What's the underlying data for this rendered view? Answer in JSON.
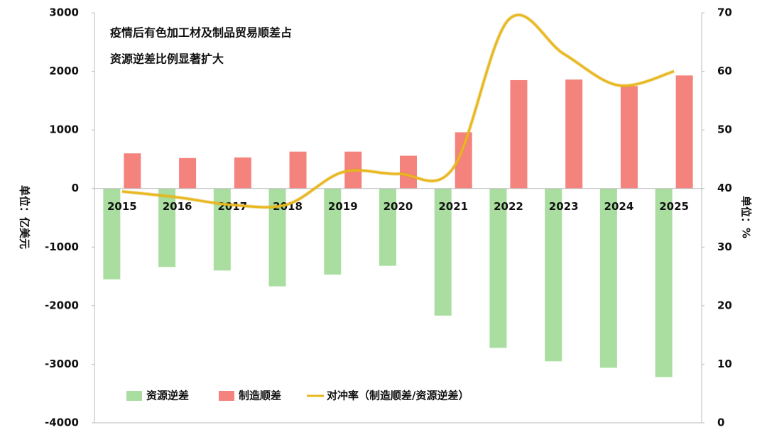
{
  "chart_data": {
    "type": "bar-line",
    "title_lines": [
      "疫情后有色加工材及制品贸易顺差占",
      "资源逆差比例显著扩大"
    ],
    "ylabel": "单位：亿美元",
    "y2label": "单位：%",
    "categories": [
      "2015",
      "2016",
      "2017",
      "2018",
      "2019",
      "2020",
      "2021",
      "2022",
      "2023",
      "2024",
      "2025"
    ],
    "series": [
      {
        "name": "资源逆差",
        "color": "#a9dea0",
        "type": "bar",
        "values": [
          -1550,
          -1340,
          -1400,
          -1670,
          -1470,
          -1320,
          -2170,
          -2720,
          -2950,
          -3060,
          -3220
        ]
      },
      {
        "name": "制造顺差",
        "color": "#f4837d",
        "type": "bar",
        "values": [
          600,
          520,
          530,
          630,
          630,
          560,
          960,
          1850,
          1860,
          1750,
          1930
        ]
      },
      {
        "name": "对冲率（制造顺差/资源逆差）",
        "color": "#e8b81e",
        "type": "line",
        "axis": "y2",
        "values": [
          39.5,
          38.5,
          37.2,
          37.3,
          42.8,
          42.5,
          43.5,
          68.8,
          63,
          57.6,
          60
        ]
      }
    ],
    "ylim": [
      -4000,
      3000
    ],
    "yticks": [
      -4000,
      -3000,
      -2000,
      -1000,
      0,
      1000,
      2000,
      3000
    ],
    "y2lim": [
      0,
      70
    ],
    "y2ticks": [
      0,
      10,
      20,
      30,
      40,
      50,
      60,
      70
    ]
  }
}
